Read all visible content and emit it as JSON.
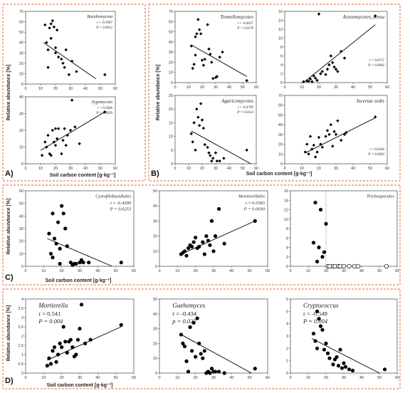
{
  "figure": {
    "panel_labels": [
      "A)",
      "B)",
      "C)",
      "D)"
    ],
    "xlabel": "Soil carbon content [g·kg⁻¹]",
    "ylabel": "Relative abundance [%]"
  },
  "chart_data": [
    {
      "id": "Basidiomycota",
      "group": "A",
      "type": "scatter",
      "title": "Basidiomycota",
      "stat_r": "r = -0.5997",
      "stat_p": "P = 0.0012",
      "xlim": [
        0,
        60
      ],
      "ylim": [
        0,
        70
      ],
      "xticks": [
        0,
        10,
        20,
        30,
        40,
        50,
        60
      ],
      "yticks": [
        0,
        10,
        20,
        30,
        40,
        50,
        60,
        70
      ],
      "x": [
        13,
        14,
        15,
        15,
        16,
        17,
        17,
        18,
        19,
        20,
        20,
        21,
        22,
        24,
        25,
        26,
        27,
        29,
        31,
        34,
        53
      ],
      "y": [
        57,
        40,
        33,
        16,
        54,
        58,
        44,
        61,
        55,
        35,
        30,
        52,
        26,
        24,
        20,
        16,
        33,
        9,
        22,
        12,
        9
      ],
      "trend": [
        [
          12,
          40
        ],
        [
          47,
          5
        ]
      ]
    },
    {
      "id": "Zygomycota",
      "group": "A",
      "type": "scatter",
      "title": "Zygomycota",
      "stat_r": "r = 0.5606",
      "stat_p": "P = 0.0029",
      "xlim": [
        0,
        60
      ],
      "ylim": [
        0,
        40
      ],
      "xticks": [
        0,
        10,
        20,
        30,
        40,
        50,
        60
      ],
      "yticks": [
        0,
        10,
        20,
        30,
        40
      ],
      "x": [
        11,
        13,
        14,
        15,
        16,
        17,
        18,
        19,
        20,
        20,
        21,
        22,
        24,
        25,
        26,
        27,
        28,
        30,
        31,
        33,
        36,
        53
      ],
      "y": [
        5,
        13,
        10,
        17,
        6,
        5,
        20,
        13,
        21,
        11,
        15,
        21,
        6,
        14,
        21,
        11,
        17,
        20,
        38,
        22,
        12,
        31
      ],
      "trend": [
        [
          10,
          8
        ],
        [
          53,
          31
        ]
      ]
    },
    {
      "id": "Tremellomycetes",
      "group": "B",
      "type": "scatter",
      "title": "Tremellomycetes",
      "stat_r": "r = -0.4637",
      "stat_p": "P = 0.0170",
      "xlim": [
        0,
        60
      ],
      "ylim": [
        0,
        70
      ],
      "xticks": [
        0,
        10,
        20,
        30,
        40,
        50,
        60
      ],
      "yticks": [
        0,
        10,
        20,
        30,
        40,
        50,
        60,
        70
      ],
      "x": [
        12,
        13,
        14,
        15,
        15,
        16,
        17,
        18,
        19,
        20,
        21,
        22,
        24,
        25,
        26,
        27,
        28,
        30,
        31,
        33,
        35,
        53
      ],
      "y": [
        36,
        14,
        18,
        45,
        27,
        48,
        62,
        52,
        48,
        22,
        17,
        23,
        57,
        33,
        28,
        20,
        4,
        5,
        6,
        25,
        30,
        2
      ],
      "trend": [
        [
          12,
          37
        ],
        [
          53,
          6
        ]
      ]
    },
    {
      "id": "Arxoomycetes_sensu",
      "group": "B",
      "type": "scatter",
      "title": "Arxoomycetes_sensu",
      "stat_r": "r = 0.6717",
      "stat_p": "P = 0.0002",
      "xlim": [
        0,
        60
      ],
      "ylim": [
        0,
        16
      ],
      "xticks": [
        0,
        10,
        20,
        30,
        40,
        50,
        60
      ],
      "yticks": [
        0,
        2,
        4,
        6,
        8,
        10,
        12,
        14,
        16
      ],
      "x": [
        11,
        13,
        14,
        15,
        16,
        17,
        18,
        19,
        20,
        21,
        22,
        24,
        25,
        26,
        27,
        28,
        29,
        30,
        31,
        33,
        35,
        53
      ],
      "y": [
        0.2,
        0.4,
        0.3,
        0.8,
        0.2,
        1.5,
        1,
        0.5,
        15.4,
        2,
        2.5,
        1.8,
        3,
        4,
        6,
        4.5,
        3.5,
        3,
        2.5,
        7,
        5.5,
        15
      ],
      "trend": [
        [
          11,
          0
        ],
        [
          53,
          13
        ]
      ]
    },
    {
      "id": "Agaricomycetes",
      "group": "B",
      "type": "scatter",
      "title": "Agaricomycetes",
      "stat_r": "r = -0.4769",
      "stat_p": "P = 0.0133",
      "xlim": [
        0,
        60
      ],
      "ylim": [
        0,
        25
      ],
      "xticks": [
        0,
        10,
        20,
        30,
        40,
        50,
        60
      ],
      "yticks": [
        0,
        5,
        10,
        15,
        20,
        25
      ],
      "x": [
        12,
        13,
        14,
        15,
        16,
        17,
        18,
        19,
        20,
        21,
        22,
        24,
        25,
        26,
        27,
        28,
        30,
        31,
        33,
        36,
        53
      ],
      "y": [
        11,
        8,
        15,
        5,
        20,
        17,
        14,
        22,
        16,
        13,
        7,
        6,
        4,
        3,
        1,
        2,
        4,
        1,
        1,
        2,
        5
      ],
      "trend": [
        [
          12,
          12
        ],
        [
          56,
          0
        ]
      ]
    },
    {
      "id": "Incertae sedis",
      "group": "B",
      "type": "scatter",
      "title": "Incertae sedis",
      "stat_r": "r = 0.6546",
      "stat_p": "P = 0.0003",
      "xlim": [
        0,
        60
      ],
      "ylim": [
        0,
        70
      ],
      "xticks": [
        0,
        10,
        20,
        30,
        40,
        50,
        60
      ],
      "yticks": [
        0,
        10,
        20,
        30,
        40,
        50,
        60,
        70
      ],
      "x": [
        12,
        13,
        14,
        15,
        16,
        17,
        18,
        19,
        20,
        21,
        22,
        24,
        25,
        26,
        27,
        28,
        29,
        30,
        31,
        33,
        35,
        36,
        53
      ],
      "y": [
        12,
        20,
        10,
        28,
        15,
        19,
        7,
        12,
        27,
        20,
        17,
        28,
        34,
        30,
        40,
        18,
        33,
        30,
        44,
        24,
        30,
        32,
        48
      ],
      "trend": [
        [
          12,
          11
        ],
        [
          53,
          47
        ]
      ]
    },
    {
      "id": "Cystofilobasidiales",
      "group": "C",
      "type": "scatter",
      "title": "Cystofilobasidiales",
      "stat_r": "r = -0.4390",
      "stat_p": "P = 0.0253",
      "xlim": [
        0,
        60
      ],
      "ylim": [
        0,
        60
      ],
      "xticks": [
        0,
        10,
        20,
        30,
        40,
        50,
        60
      ],
      "yticks": [
        0,
        10,
        20,
        30,
        40,
        50,
        60
      ],
      "x": [
        13,
        14,
        15,
        15,
        16,
        17,
        18,
        19,
        19,
        20,
        21,
        22,
        23,
        25,
        26,
        27,
        28,
        30,
        31,
        32,
        35,
        53
      ],
      "y": [
        26,
        10,
        7,
        42,
        22,
        18,
        35,
        14,
        2,
        48,
        42,
        30,
        16,
        3,
        1,
        2,
        2,
        3,
        5,
        3,
        3,
        3
      ],
      "trend": [
        [
          12,
          22
        ],
        [
          48,
          0
        ]
      ]
    },
    {
      "id": "Mortierellales",
      "group": "C",
      "type": "scatter",
      "title": "Mortierellales",
      "stat_r": "r = 0.5583",
      "stat_p": "P = 0.0030",
      "xlim": [
        0,
        60
      ],
      "ylim": [
        0,
        50
      ],
      "xticks": [
        0,
        10,
        20,
        30,
        40,
        50,
        60
      ],
      "yticks": [
        0,
        10,
        20,
        30,
        40,
        50
      ],
      "x": [
        12,
        13,
        14,
        15,
        16,
        17,
        18,
        19,
        20,
        21,
        22,
        24,
        25,
        26,
        27,
        28,
        29,
        30,
        31,
        33,
        36,
        53
      ],
      "y": [
        8,
        9,
        10,
        7,
        12,
        14,
        13,
        16,
        19,
        12,
        13,
        16,
        8,
        20,
        17,
        14,
        30,
        10,
        20,
        38,
        15,
        30
      ],
      "trend": [
        [
          12,
          8
        ],
        [
          53,
          30
        ]
      ]
    },
    {
      "id": "Trichosporales",
      "group": "C",
      "type": "scatter",
      "title": "Trichosporales",
      "xlim": [
        0,
        60
      ],
      "ylim": [
        0,
        16
      ],
      "xticks": [
        0,
        10,
        20,
        30,
        40,
        50,
        60
      ],
      "yticks": [
        0,
        2,
        4,
        6,
        8,
        10,
        12,
        14,
        16
      ],
      "x": [
        13,
        14,
        15,
        16,
        17,
        18,
        19,
        20
      ],
      "y": [
        5,
        13.5,
        1,
        4,
        12,
        2,
        3,
        9
      ],
      "open_x": [
        21,
        22,
        24,
        25,
        27,
        28,
        30,
        33,
        36,
        38,
        54
      ],
      "open_y": [
        0,
        0,
        0,
        0,
        0,
        0,
        0,
        0,
        0,
        0,
        0
      ],
      "threshold_x": 20
    },
    {
      "id": "Mortierella",
      "group": "D",
      "type": "scatter",
      "title": "Mortierella",
      "stat_r": "r = 0.541",
      "stat_p": "P = 0.004",
      "xlim": [
        0,
        60
      ],
      "ylim": [
        0,
        4
      ],
      "xticks": [
        0,
        10,
        20,
        30,
        40,
        50,
        60
      ],
      "yticks": [
        0,
        0.5,
        1,
        1.5,
        2,
        2.5,
        3,
        3.5,
        4
      ],
      "x": [
        12,
        13,
        14,
        15,
        16,
        17,
        18,
        19,
        20,
        21,
        22,
        23,
        24,
        25,
        26,
        27,
        28,
        29,
        30,
        31,
        33,
        36,
        53
      ],
      "y": [
        0.4,
        0.8,
        0.5,
        1.2,
        1.4,
        0.6,
        1,
        1.6,
        1.4,
        2.5,
        1.7,
        1.1,
        1.7,
        1.8,
        1.4,
        0.9,
        1,
        1.8,
        2.4,
        3.7,
        1.6,
        1.8,
        2.6
      ],
      "trend": [
        [
          12,
          0.7
        ],
        [
          53,
          2.5
        ]
      ]
    },
    {
      "id": "Guehomyces",
      "group": "D",
      "type": "scatter",
      "title": "Guehomyces",
      "stat_r": "r = -0.434",
      "stat_p": "p = 0.027",
      "xlim": [
        0,
        60
      ],
      "ylim": [
        0,
        50
      ],
      "xticks": [
        0,
        10,
        20,
        30,
        40,
        50,
        60
      ],
      "yticks": [
        0,
        10,
        20,
        30,
        40,
        50
      ],
      "x": [
        12,
        13,
        14,
        15,
        16,
        17,
        18,
        19,
        20,
        21,
        22,
        23,
        24,
        25,
        26,
        27,
        28,
        29,
        30,
        31,
        33,
        36,
        53
      ],
      "y": [
        26,
        20,
        18,
        8,
        1,
        31,
        15,
        34,
        11,
        37,
        20,
        13,
        10,
        15,
        0,
        1,
        0,
        3,
        1,
        1,
        1,
        0,
        3
      ],
      "trend": [
        [
          12,
          26
        ],
        [
          51,
          0
        ]
      ]
    },
    {
      "id": "Cryptococcus",
      "group": "D",
      "type": "scatter",
      "title": "Cryptococcus",
      "stat_r": "r = -0.549",
      "stat_p": "P = 0.004",
      "xlim": [
        0,
        60
      ],
      "ylim": [
        0,
        6
      ],
      "xticks": [
        0,
        10,
        20,
        30,
        40,
        50,
        60
      ],
      "yticks": [
        0,
        1,
        2,
        3,
        4,
        5,
        6
      ],
      "x": [
        13,
        14,
        15,
        15,
        16,
        17,
        18,
        19,
        20,
        21,
        22,
        24,
        25,
        26,
        27,
        28,
        29,
        30,
        31,
        33,
        35,
        53
      ],
      "y": [
        3.2,
        2.6,
        5,
        2,
        4.4,
        3.8,
        3.5,
        1.9,
        2.4,
        1.6,
        1.2,
        0.7,
        1.1,
        1.3,
        0.6,
        1.9,
        0.4,
        0.8,
        0.5,
        0.3,
        0.2,
        0.3
      ],
      "trend": [
        [
          12,
          2.8
        ],
        [
          50,
          0
        ]
      ]
    }
  ]
}
